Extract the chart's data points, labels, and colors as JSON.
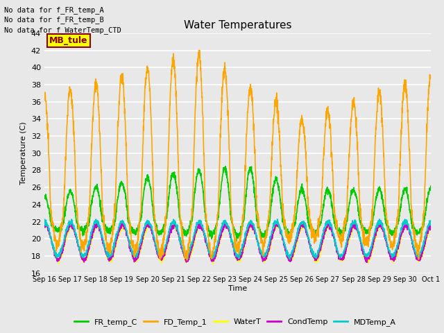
{
  "title": "Water Temperatures",
  "ylabel": "Temperature (C)",
  "xlabel": "Time",
  "ylim": [
    16,
    44
  ],
  "yticks": [
    16,
    18,
    20,
    22,
    24,
    26,
    28,
    30,
    32,
    34,
    36,
    38,
    40,
    42,
    44
  ],
  "bg_color": "#e8e8e8",
  "plot_bg_color": "#e8e8e8",
  "annotations": [
    "No data for f_FR_temp_A",
    "No data for f_FR_temp_B",
    "No data for f_WaterTemp_CTD"
  ],
  "annotation_box_text": "MB_tule",
  "annotation_box_color": "#8b0000",
  "annotation_box_bg": "#ffff00",
  "series": {
    "FR_temp_C": {
      "color": "#00cc00",
      "linewidth": 1.2
    },
    "FD_Temp_1": {
      "color": "#ffa500",
      "linewidth": 1.2
    },
    "WaterT": {
      "color": "#ffff00",
      "linewidth": 1.2
    },
    "CondTemp": {
      "color": "#cc00cc",
      "linewidth": 1.2
    },
    "MDTemp_A": {
      "color": "#00cccc",
      "linewidth": 1.2
    }
  },
  "x_tick_labels": [
    "Sep 16",
    "Sep 17",
    "Sep 18",
    "Sep 19",
    "Sep 20",
    "Sep 21",
    "Sep 22",
    "Sep 23",
    "Sep 24",
    "Sep 25",
    "Sep 26",
    "Sep 27",
    "Sep 28",
    "Sep 29",
    "Sep 30",
    "Oct 1"
  ],
  "num_days": 15,
  "points_per_day": 144
}
